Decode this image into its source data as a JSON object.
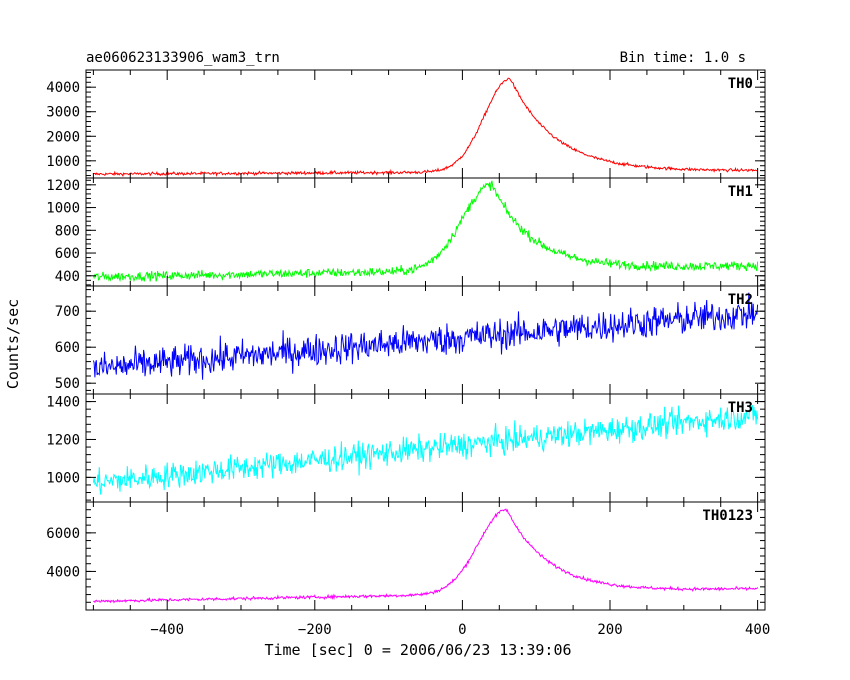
{
  "chart_data": {
    "type": "line",
    "title": "ae060623133906_wam3_trn",
    "bin_time_label": "Bin time: 1.0 s",
    "xlabel": "Time [sec] 0 = 2006/06/23 13:39:06",
    "ylabel": "Counts/sec",
    "xlim": [
      -510,
      410
    ],
    "x_ticks": [
      -400,
      -200,
      0,
      200,
      400
    ],
    "x_tick_labels": [
      "−400",
      "−200",
      "0",
      "200",
      "400"
    ],
    "x_data_range": [
      -500,
      400
    ],
    "panels": [
      {
        "name": "TH0",
        "color": "#ff0000",
        "ylim": [
          300,
          4700
        ],
        "y_ticks": [
          1000,
          2000,
          3000,
          4000
        ],
        "model": {
          "baseline_start": 460,
          "baseline_end": 600,
          "peak": 4350,
          "peak_time": 65,
          "rise": 35,
          "decay": 60,
          "noise": 60
        }
      },
      {
        "name": "TH1",
        "color": "#00ff00",
        "ylim": [
          310,
          1260
        ],
        "y_ticks": [
          400,
          600,
          800,
          1000,
          1200
        ],
        "model": {
          "baseline_start": 390,
          "baseline_end": 490,
          "peak": 1200,
          "peak_time": 40,
          "rise": 40,
          "decay": 55,
          "noise": 40
        }
      },
      {
        "name": "TH2",
        "color": "#0000ff",
        "ylim": [
          470,
          770
        ],
        "y_ticks": [
          500,
          600,
          700
        ],
        "model": {
          "baseline_start": 540,
          "baseline_end": 695,
          "peak": 0,
          "peak_time": 0,
          "rise": 1,
          "decay": 1,
          "noise": 45
        }
      },
      {
        "name": "TH3",
        "color": "#00ffff",
        "ylim": [
          870,
          1440
        ],
        "y_ticks": [
          1000,
          1200,
          1400
        ],
        "model": {
          "baseline_start": 970,
          "baseline_end": 1330,
          "peak": 0,
          "peak_time": 0,
          "rise": 1,
          "decay": 1,
          "noise": 70
        }
      },
      {
        "name": "TH0123",
        "color": "#ff00ff",
        "ylim": [
          2000,
          7600
        ],
        "y_ticks": [
          4000,
          6000
        ],
        "model": {
          "baseline_start": 2450,
          "baseline_end": 3100,
          "peak": 7200,
          "peak_time": 60,
          "rise": 38,
          "decay": 58,
          "noise": 80
        }
      }
    ]
  }
}
